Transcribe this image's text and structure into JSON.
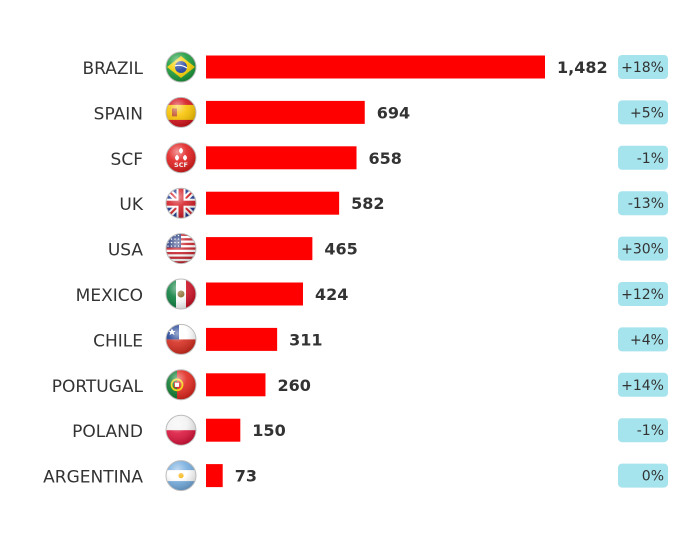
{
  "chart_data": {
    "type": "bar",
    "orientation": "horizontal",
    "categories": [
      "BRAZIL",
      "SPAIN",
      "SCF",
      "UK",
      "USA",
      "MEXICO",
      "CHILE",
      "PORTUGAL",
      "POLAND",
      "ARGENTINA"
    ],
    "values": [
      1482,
      694,
      658,
      582,
      465,
      424,
      311,
      260,
      150,
      73
    ],
    "value_labels": [
      "1,482",
      "694",
      "658",
      "582",
      "465",
      "424",
      "311",
      "260",
      "150",
      "73"
    ],
    "changes": [
      "+18%",
      "+5%",
      "-1%",
      "-13%",
      "+30%",
      "+12%",
      "+4%",
      "+14%",
      "-1%",
      "0%"
    ],
    "flags": [
      "brazil-flag-icon",
      "spain-flag-icon",
      "scf-logo-icon",
      "uk-flag-icon",
      "usa-flag-icon",
      "mexico-flag-icon",
      "chile-flag-icon",
      "portugal-flag-icon",
      "poland-flag-icon",
      "argentina-flag-icon"
    ],
    "scf_logo_text": "SCF",
    "xlim": [
      0,
      1482
    ],
    "grid": false,
    "legend": "none",
    "colors": {
      "bar": "#ff0000",
      "change_badge": "#a6e4ed",
      "text": "#333333"
    }
  }
}
